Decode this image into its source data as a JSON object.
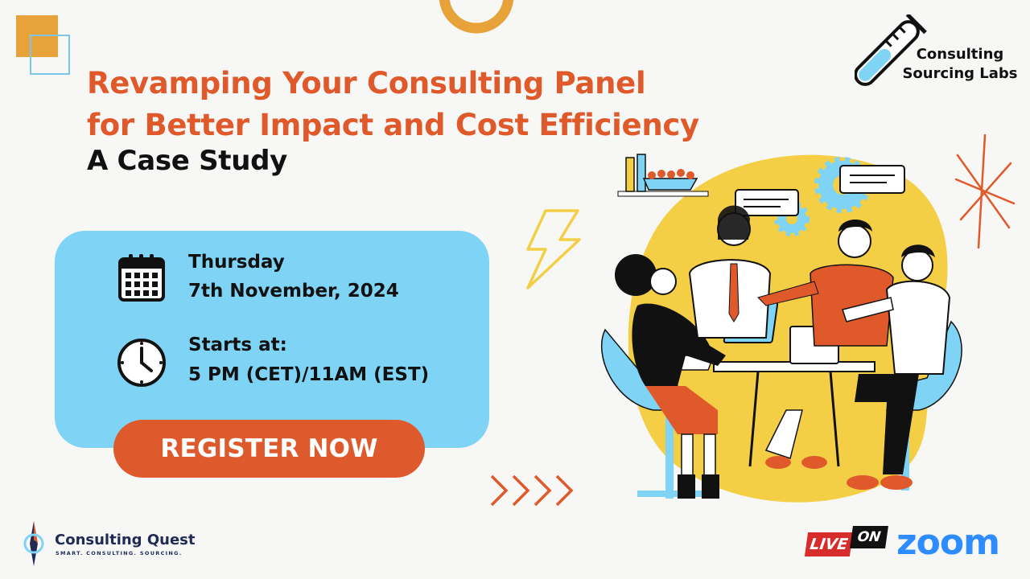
{
  "title": {
    "line1": "Revamping Your Consulting Panel",
    "line2": "for Better Impact and Cost Efficiency",
    "subtitle": "A Case Study"
  },
  "brand_top_right": {
    "line1": "Consulting",
    "line2": "Sourcing Labs",
    "icon": "test-tube-icon"
  },
  "event": {
    "day": "Thursday",
    "date": "7th November, 2024",
    "time_label": "Starts at:",
    "time": "5 PM (CET)/11AM (EST)",
    "date_icon": "calendar-icon",
    "time_icon": "clock-icon"
  },
  "cta": {
    "label": "REGISTER NOW"
  },
  "footer_left": {
    "name": "Consulting Quest",
    "tagline": "SMART. CONSULTING. SOURCING.",
    "icon": "compass-icon"
  },
  "footer_right": {
    "live": "LIVE",
    "on": "ON",
    "platform": "zoom"
  },
  "colors": {
    "accent_orange": "#e0592a",
    "button_orange": "#de5a2c",
    "card_blue": "#7fd3f5",
    "illustration_yellow": "#f4cf46",
    "zoom_blue": "#2d8cff",
    "live_red": "#d82b2b"
  }
}
